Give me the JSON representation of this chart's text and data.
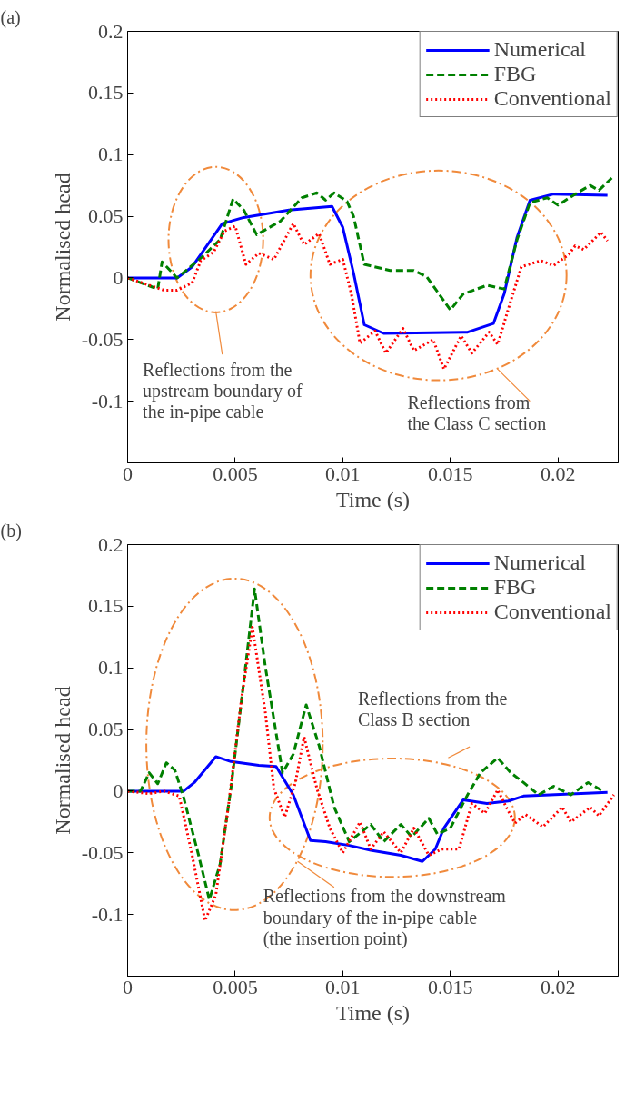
{
  "chart_data": [
    {
      "type": "line",
      "title": "(a)",
      "xlabel": "Time (s)",
      "ylabel": "Normalised head",
      "xlim": [
        0,
        0.0228
      ],
      "ylim": [
        -0.15,
        0.2
      ],
      "xticks": [
        0,
        0.005,
        0.01,
        0.015,
        0.02
      ],
      "yticks": [
        -0.1,
        -0.05,
        0,
        0.05,
        0.1,
        0.15,
        0.2
      ],
      "grid": false,
      "legend": "top right",
      "annotations": [
        "Reflections from the\nupstream boundary of\nthe in-pipe cable",
        "Reflections from\nthe Class C section"
      ],
      "series": [
        {
          "name": "Numerical",
          "color": "#0000ff",
          "line_style": "solid",
          "x": [
            0,
            0.0023,
            0.003,
            0.0044,
            0.0054,
            0.0075,
            0.0095,
            0.01,
            0.0105,
            0.011,
            0.0119,
            0.0158,
            0.017,
            0.0175,
            0.0181,
            0.0187,
            0.0198,
            0.0223
          ],
          "values": [
            0,
            0,
            0.009,
            0.044,
            0.049,
            0.055,
            0.058,
            0.041,
            0.004,
            -0.038,
            -0.045,
            -0.044,
            -0.037,
            -0.013,
            0.033,
            0.063,
            0.068,
            0.067
          ]
        },
        {
          "name": "FBG",
          "color": "#008000",
          "line_style": "dashed",
          "x": [
            0,
            0.0014,
            0.0016,
            0.0023,
            0.0034,
            0.0043,
            0.0049,
            0.0054,
            0.006,
            0.0071,
            0.0081,
            0.0088,
            0.0092,
            0.0096,
            0.0102,
            0.0105,
            0.011,
            0.0122,
            0.0133,
            0.0139,
            0.015,
            0.0156,
            0.0167,
            0.0175,
            0.0181,
            0.0187,
            0.0195,
            0.02,
            0.0209,
            0.0215,
            0.0219,
            0.0225
          ],
          "values": [
            0,
            -0.009,
            0.013,
            0,
            0.016,
            0.031,
            0.064,
            0.055,
            0.035,
            0.046,
            0.065,
            0.069,
            0.063,
            0.069,
            0.062,
            0.05,
            0.011,
            0.006,
            0.006,
            0.001,
            -0.026,
            -0.013,
            -0.006,
            -0.009,
            0.031,
            0.061,
            0.065,
            0.059,
            0.069,
            0.075,
            0.071,
            0.081
          ]
        },
        {
          "name": "Conventional",
          "color": "#ff0000",
          "line_style": "dotted",
          "x": [
            0,
            0.0017,
            0.0023,
            0.003,
            0.0034,
            0.004,
            0.0045,
            0.005,
            0.0055,
            0.0061,
            0.0068,
            0.0077,
            0.0082,
            0.0089,
            0.0094,
            0.01,
            0.0104,
            0.0108,
            0.0115,
            0.012,
            0.0128,
            0.0133,
            0.0142,
            0.0147,
            0.0155,
            0.016,
            0.0168,
            0.0172,
            0.0178,
            0.0183,
            0.0192,
            0.0198,
            0.0205,
            0.0208,
            0.0212,
            0.022,
            0.0223
          ],
          "values": [
            0,
            -0.01,
            -0.01,
            -0.004,
            0.014,
            0.021,
            0.038,
            0.042,
            0.011,
            0.02,
            0.015,
            0.044,
            0.027,
            0.036,
            0.011,
            0.015,
            -0.013,
            -0.053,
            -0.043,
            -0.061,
            -0.041,
            -0.059,
            -0.05,
            -0.074,
            -0.047,
            -0.061,
            -0.044,
            -0.054,
            -0.019,
            0.009,
            0.014,
            0.01,
            0.019,
            0.026,
            0.023,
            0.037,
            0.03
          ]
        }
      ]
    },
    {
      "type": "line",
      "title": "(b)",
      "xlabel": "Time (s)",
      "ylabel": "Normalised head",
      "xlim": [
        0,
        0.0228
      ],
      "ylim": [
        -0.15,
        0.2
      ],
      "xticks": [
        0,
        0.005,
        0.01,
        0.015,
        0.02
      ],
      "yticks": [
        -0.1,
        -0.05,
        0,
        0.05,
        0.1,
        0.15,
        0.2
      ],
      "grid": false,
      "legend": "top right",
      "annotations": [
        "Reflections from the\nClass B section",
        "Reflections from the downstream\nboundary of the in-pipe cable\n(the insertion point)"
      ],
      "series": [
        {
          "name": "Numerical",
          "color": "#0000ff",
          "line_style": "solid",
          "x": [
            0,
            0.0026,
            0.0031,
            0.0041,
            0.0048,
            0.0061,
            0.0069,
            0.0077,
            0.0085,
            0.0092,
            0.0103,
            0.0113,
            0.0127,
            0.0137,
            0.0143,
            0.0147,
            0.0156,
            0.0167,
            0.0177,
            0.0184,
            0.0223
          ],
          "values": [
            0,
            0,
            0.007,
            0.028,
            0.024,
            0.021,
            0.02,
            -0.003,
            -0.04,
            -0.041,
            -0.044,
            -0.048,
            -0.052,
            -0.057,
            -0.047,
            -0.03,
            -0.007,
            -0.01,
            -0.008,
            -0.004,
            -0.001
          ]
        },
        {
          "name": "FBG",
          "color": "#008000",
          "line_style": "dashed",
          "x": [
            0,
            0.0006,
            0.001,
            0.0014,
            0.0018,
            0.0022,
            0.0026,
            0.0033,
            0.0038,
            0.0043,
            0.0048,
            0.0054,
            0.0059,
            0.0064,
            0.0072,
            0.0077,
            0.0083,
            0.0089,
            0.0096,
            0.0103,
            0.0113,
            0.0119,
            0.0127,
            0.0132,
            0.014,
            0.0144,
            0.015,
            0.0158,
            0.0164,
            0.0172,
            0.0178,
            0.0184,
            0.0191,
            0.0198,
            0.0206,
            0.0214,
            0.0221
          ],
          "values": [
            0,
            0,
            0.015,
            0.006,
            0.023,
            0.017,
            -0.005,
            -0.052,
            -0.088,
            -0.059,
            0.002,
            0.089,
            0.164,
            0.101,
            0.015,
            0.03,
            0.07,
            0.037,
            -0.013,
            -0.041,
            -0.027,
            -0.041,
            -0.027,
            -0.037,
            -0.022,
            -0.035,
            -0.03,
            -0.003,
            0.015,
            0.027,
            0.015,
            0.007,
            -0.003,
            0.004,
            -0.003,
            0.007,
            0
          ]
        },
        {
          "name": "Conventional",
          "color": "#ff0000",
          "line_style": "dotted",
          "x": [
            0,
            0.001,
            0.0017,
            0.0024,
            0.003,
            0.0036,
            0.0041,
            0.0047,
            0.0053,
            0.0058,
            0.0064,
            0.0068,
            0.0073,
            0.0078,
            0.0082,
            0.0088,
            0.0094,
            0.01,
            0.0108,
            0.0113,
            0.0119,
            0.0127,
            0.0133,
            0.014,
            0.0146,
            0.0154,
            0.016,
            0.0166,
            0.0172,
            0.0176,
            0.018,
            0.0185,
            0.0193,
            0.0202,
            0.0206,
            0.0215,
            0.0219,
            0.0226
          ],
          "values": [
            0,
            -0.002,
            0,
            -0.004,
            -0.052,
            -0.105,
            -0.084,
            -0.01,
            0.076,
            0.133,
            0.064,
            0.002,
            -0.021,
            0.007,
            0.044,
            0.002,
            -0.03,
            -0.05,
            -0.025,
            -0.047,
            -0.033,
            -0.05,
            -0.03,
            -0.052,
            -0.047,
            -0.047,
            -0.01,
            -0.018,
            0.001,
            -0.013,
            -0.026,
            -0.019,
            -0.029,
            -0.013,
            -0.025,
            -0.013,
            -0.02,
            -0.003
          ]
        }
      ]
    }
  ]
}
